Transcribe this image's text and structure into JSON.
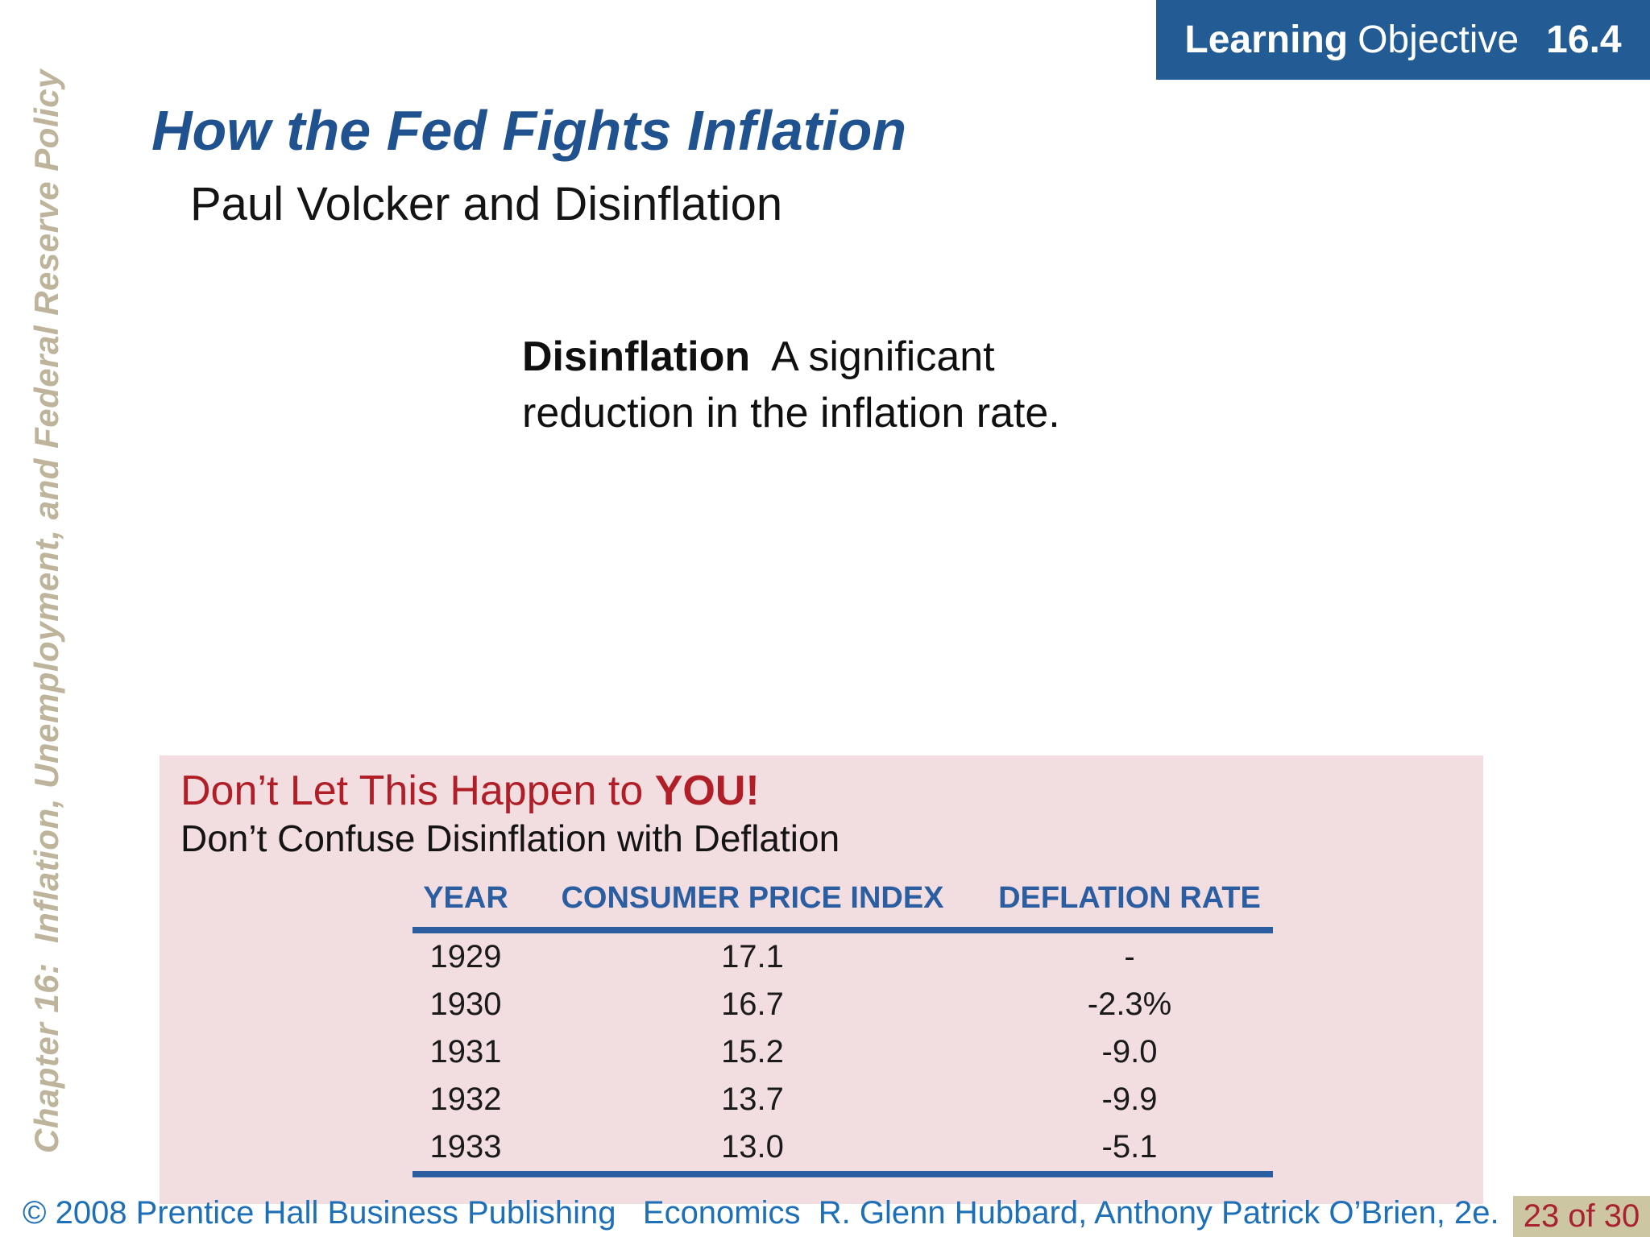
{
  "learning_objective": {
    "word1": "Learning",
    "word2": "Objective",
    "number": "16.4"
  },
  "sidebar_vertical_text": "Chapter 16:  Inflation, Unemployment, and Federal Reserve Policy",
  "title": "How the Fed Fights Inflation",
  "subtitle": "Paul Volcker and Disinflation",
  "definition": {
    "term": "Disinflation",
    "rest": "A significant reduction in the inflation rate."
  },
  "callout": {
    "heading_prefix": "Don’t Let This Happen to ",
    "heading_emphasis": "YOU!",
    "subheading": "Don’t Confuse Disinflation with Deflation"
  },
  "chart_data": {
    "type": "table",
    "title": "Don’t Confuse Disinflation with Deflation",
    "columns": [
      "YEAR",
      "CONSUMER PRICE INDEX",
      "DEFLATION RATE"
    ],
    "rows": [
      [
        "1929",
        "17.1",
        "-"
      ],
      [
        "1930",
        "16.7",
        "-2.3%"
      ],
      [
        "1931",
        "15.2",
        "-9.0"
      ],
      [
        "1932",
        "13.7",
        "-9.9"
      ],
      [
        "1933",
        "13.0",
        "-5.1"
      ]
    ]
  },
  "footer": {
    "copyright": "© 2008 Prentice Hall Business Publishing   Economics  R. Glenn Hubbard, Anthony Patrick O’Brien, 2e.",
    "page_indicator": "23 of 30"
  },
  "colors": {
    "badge_navy": "#235C94",
    "title_blue": "#1F528F",
    "table_blue": "#2B5EA1",
    "footer_blue": "#1D6FB8",
    "callout_red": "#B01E28",
    "callout_pink": "#F2DEE1",
    "page_badge_tan": "#CCC6A3",
    "page_badge_red": "#A8232F",
    "sidebar_tan": "#BEB49B"
  }
}
